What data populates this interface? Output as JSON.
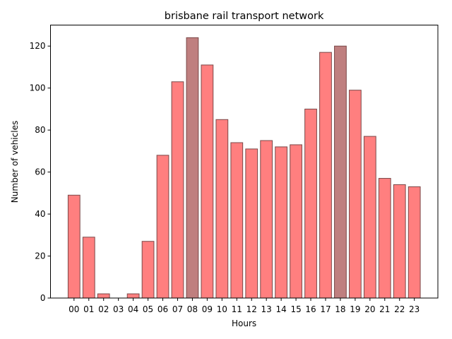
{
  "chart_data": {
    "type": "bar",
    "title": "brisbane rail transport network",
    "xlabel": "Hours",
    "ylabel": "Number of vehicles",
    "categories": [
      "00",
      "01",
      "02",
      "03",
      "04",
      "05",
      "06",
      "07",
      "08",
      "09",
      "10",
      "11",
      "12",
      "13",
      "14",
      "15",
      "16",
      "17",
      "18",
      "19",
      "20",
      "21",
      "22",
      "23"
    ],
    "values": [
      49,
      29,
      2,
      0,
      2,
      27,
      68,
      103,
      124,
      111,
      85,
      74,
      71,
      75,
      72,
      73,
      90,
      117,
      120,
      99,
      77,
      57,
      54,
      53
    ],
    "highlighted_categories": [
      "08",
      "18"
    ],
    "ylim": [
      0,
      130
    ],
    "yticks": [
      0,
      20,
      40,
      60,
      80,
      100,
      120
    ],
    "grid": false,
    "colors": {
      "bar": "#ff7f7f",
      "bar_highlight": "#bf7f7f",
      "bar_edge": "#7a4848",
      "axis": "#000000"
    }
  }
}
